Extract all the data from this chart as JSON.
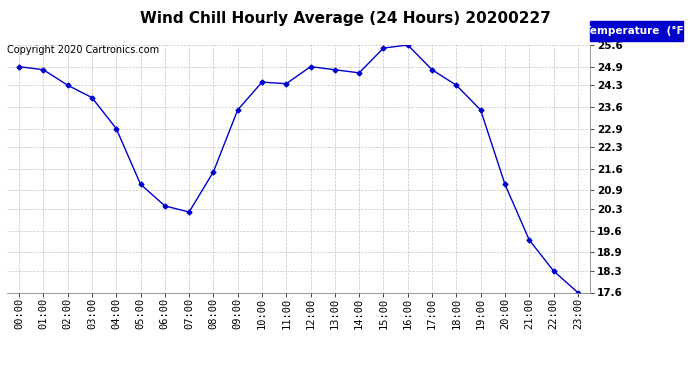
{
  "title": "Wind Chill Hourly Average (24 Hours) 20200227",
  "copyright": "Copyright 2020 Cartronics.com",
  "hours": [
    "00:00",
    "01:00",
    "02:00",
    "03:00",
    "04:00",
    "05:00",
    "06:00",
    "07:00",
    "08:00",
    "09:00",
    "10:00",
    "11:00",
    "12:00",
    "13:00",
    "14:00",
    "15:00",
    "16:00",
    "17:00",
    "18:00",
    "19:00",
    "20:00",
    "21:00",
    "22:00",
    "23:00"
  ],
  "values": [
    24.9,
    24.8,
    24.3,
    23.9,
    22.9,
    21.1,
    20.4,
    20.2,
    21.5,
    23.5,
    24.4,
    24.35,
    24.9,
    24.8,
    24.7,
    25.5,
    25.6,
    24.8,
    24.3,
    23.5,
    21.1,
    19.3,
    18.3,
    17.6
  ],
  "ylim_min": 17.6,
  "ylim_max": 25.6,
  "yticks": [
    17.6,
    18.3,
    18.9,
    19.6,
    20.3,
    20.9,
    21.6,
    22.3,
    22.9,
    23.6,
    24.3,
    24.9,
    25.6
  ],
  "line_color": "#0000cc",
  "marker": "D",
  "marker_size": 2.5,
  "bg_color": "#ffffff",
  "plot_bg_color": "#ffffff",
  "grid_color": "#aaaaaa",
  "legend_bg": "#0000cc",
  "legend_text": "Temperature  (°F)",
  "title_fontsize": 11,
  "copyright_fontsize": 7,
  "tick_fontsize": 7.5,
  "legend_fontsize": 7.5
}
